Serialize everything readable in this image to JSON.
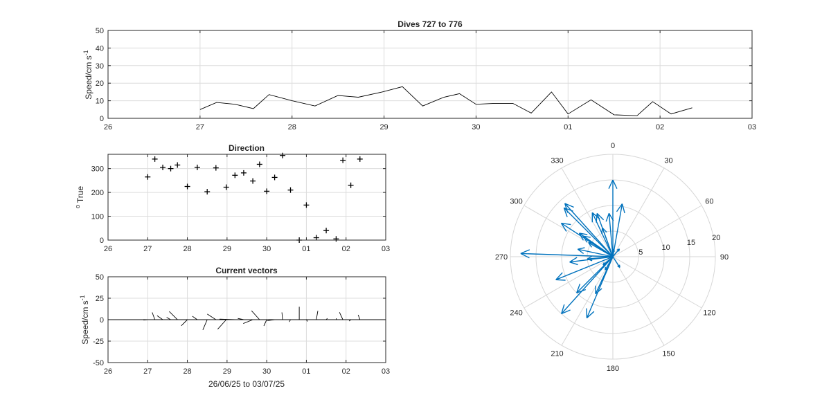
{
  "chart_data": [
    {
      "id": "speed",
      "type": "line",
      "title": "Dives 727 to 776",
      "xlabel": "",
      "ylabel": "Speed/cm s",
      "ylabel_sup": "-1",
      "xlim": [
        26,
        33
      ],
      "ylim": [
        0,
        50
      ],
      "yticks": [
        0,
        10,
        20,
        30,
        40,
        50
      ],
      "xtick_labels": [
        "26",
        "27",
        "28",
        "29",
        "30",
        "01",
        "02",
        "03"
      ],
      "grid": true,
      "x": [
        27.0,
        27.18,
        27.38,
        27.58,
        27.75,
        28.0,
        28.25,
        28.5,
        28.72,
        28.98,
        29.2,
        29.42,
        29.65,
        29.82,
        30.0,
        30.2,
        30.4,
        30.6,
        30.82,
        31.0,
        31.25,
        31.5,
        31.75,
        31.92,
        32.12,
        32.35
      ],
      "values": [
        5,
        9,
        8,
        5.5,
        13.5,
        10,
        7,
        13,
        12,
        15,
        18,
        7,
        12,
        14,
        8,
        8.5,
        8.5,
        3,
        15,
        2.5,
        10.5,
        2,
        1.5,
        9.5,
        2.5,
        6
      ]
    },
    {
      "id": "direction",
      "type": "scatter",
      "title": "Direction",
      "xlabel": "",
      "ylabel": "True",
      "ylabel_sup": "o",
      "xlim": [
        26,
        33
      ],
      "ylim": [
        0,
        360
      ],
      "yticks": [
        0,
        100,
        200,
        300
      ],
      "xtick_labels": [
        "26",
        "27",
        "28",
        "29",
        "30",
        "01",
        "02",
        "03"
      ],
      "grid": true,
      "marker": "+",
      "x": [
        27.0,
        27.18,
        27.38,
        27.58,
        27.75,
        28.0,
        28.25,
        28.5,
        28.72,
        28.98,
        29.2,
        29.42,
        29.65,
        29.82,
        30.0,
        30.2,
        30.4,
        30.6,
        30.82,
        31.0,
        31.25,
        31.5,
        31.75,
        31.92,
        32.12,
        32.35
      ],
      "values": [
        265,
        340,
        305,
        300,
        315,
        225,
        305,
        203,
        303,
        222,
        272,
        282,
        248,
        318,
        205,
        263,
        355,
        210,
        0,
        147,
        10,
        40,
        5,
        335,
        230,
        340
      ]
    },
    {
      "id": "vectors",
      "type": "line",
      "title": "Current vectors",
      "xlabel": "26/06/25 to 03/07/25",
      "ylabel": "Speed/cm s",
      "ylabel_sup": "-1",
      "xlim": [
        26,
        33
      ],
      "ylim": [
        -50,
        50
      ],
      "yticks": [
        -50,
        -25,
        0,
        25,
        50
      ],
      "xtick_labels": [
        "26",
        "27",
        "28",
        "29",
        "30",
        "01",
        "02",
        "03"
      ],
      "grid": true,
      "note": "stick plot: each stick starts at (x, 0) and points in the current direction, length = speed",
      "x": [
        27.0,
        27.18,
        27.38,
        27.58,
        27.75,
        28.0,
        28.25,
        28.5,
        28.72,
        28.98,
        29.2,
        29.42,
        29.65,
        29.82,
        30.0,
        30.2,
        30.4,
        30.6,
        30.82,
        31.0,
        31.25,
        31.5,
        31.75,
        31.92,
        32.12,
        32.35
      ],
      "speed": [
        5,
        9,
        8,
        5.5,
        13.5,
        10,
        7,
        13,
        12,
        15,
        18,
        7,
        12,
        14,
        8,
        8.5,
        8.5,
        3,
        15,
        2.5,
        10.5,
        2,
        1.5,
        9.5,
        2.5,
        6
      ],
      "direction": [
        265,
        340,
        305,
        300,
        315,
        225,
        305,
        203,
        303,
        222,
        272,
        282,
        248,
        318,
        205,
        263,
        355,
        210,
        0,
        147,
        10,
        40,
        5,
        335,
        230,
        340
      ]
    },
    {
      "id": "polar",
      "type": "polar-compass",
      "title": "",
      "theta_labels": [
        "0",
        "30",
        "60",
        "90",
        "120",
        "150",
        "180",
        "210",
        "240",
        "270",
        "300",
        "330"
      ],
      "r_ticks": [
        5,
        10,
        15,
        20
      ],
      "rlim": [
        0,
        20
      ],
      "theta_zero": "top",
      "theta_direction": "clockwise",
      "speed": [
        5,
        9,
        8,
        5.5,
        13.5,
        10,
        7,
        13,
        12,
        15,
        18,
        7,
        12,
        14,
        8,
        8.5,
        8.5,
        3,
        15,
        2.5,
        10.5,
        2,
        1.5,
        9.5,
        2.5,
        6
      ],
      "direction": [
        265,
        340,
        305,
        300,
        315,
        225,
        305,
        203,
        303,
        222,
        272,
        282,
        248,
        318,
        205,
        263,
        355,
        210,
        0,
        147,
        10,
        40,
        5,
        335,
        230,
        340
      ],
      "color": "#0072bd"
    }
  ]
}
